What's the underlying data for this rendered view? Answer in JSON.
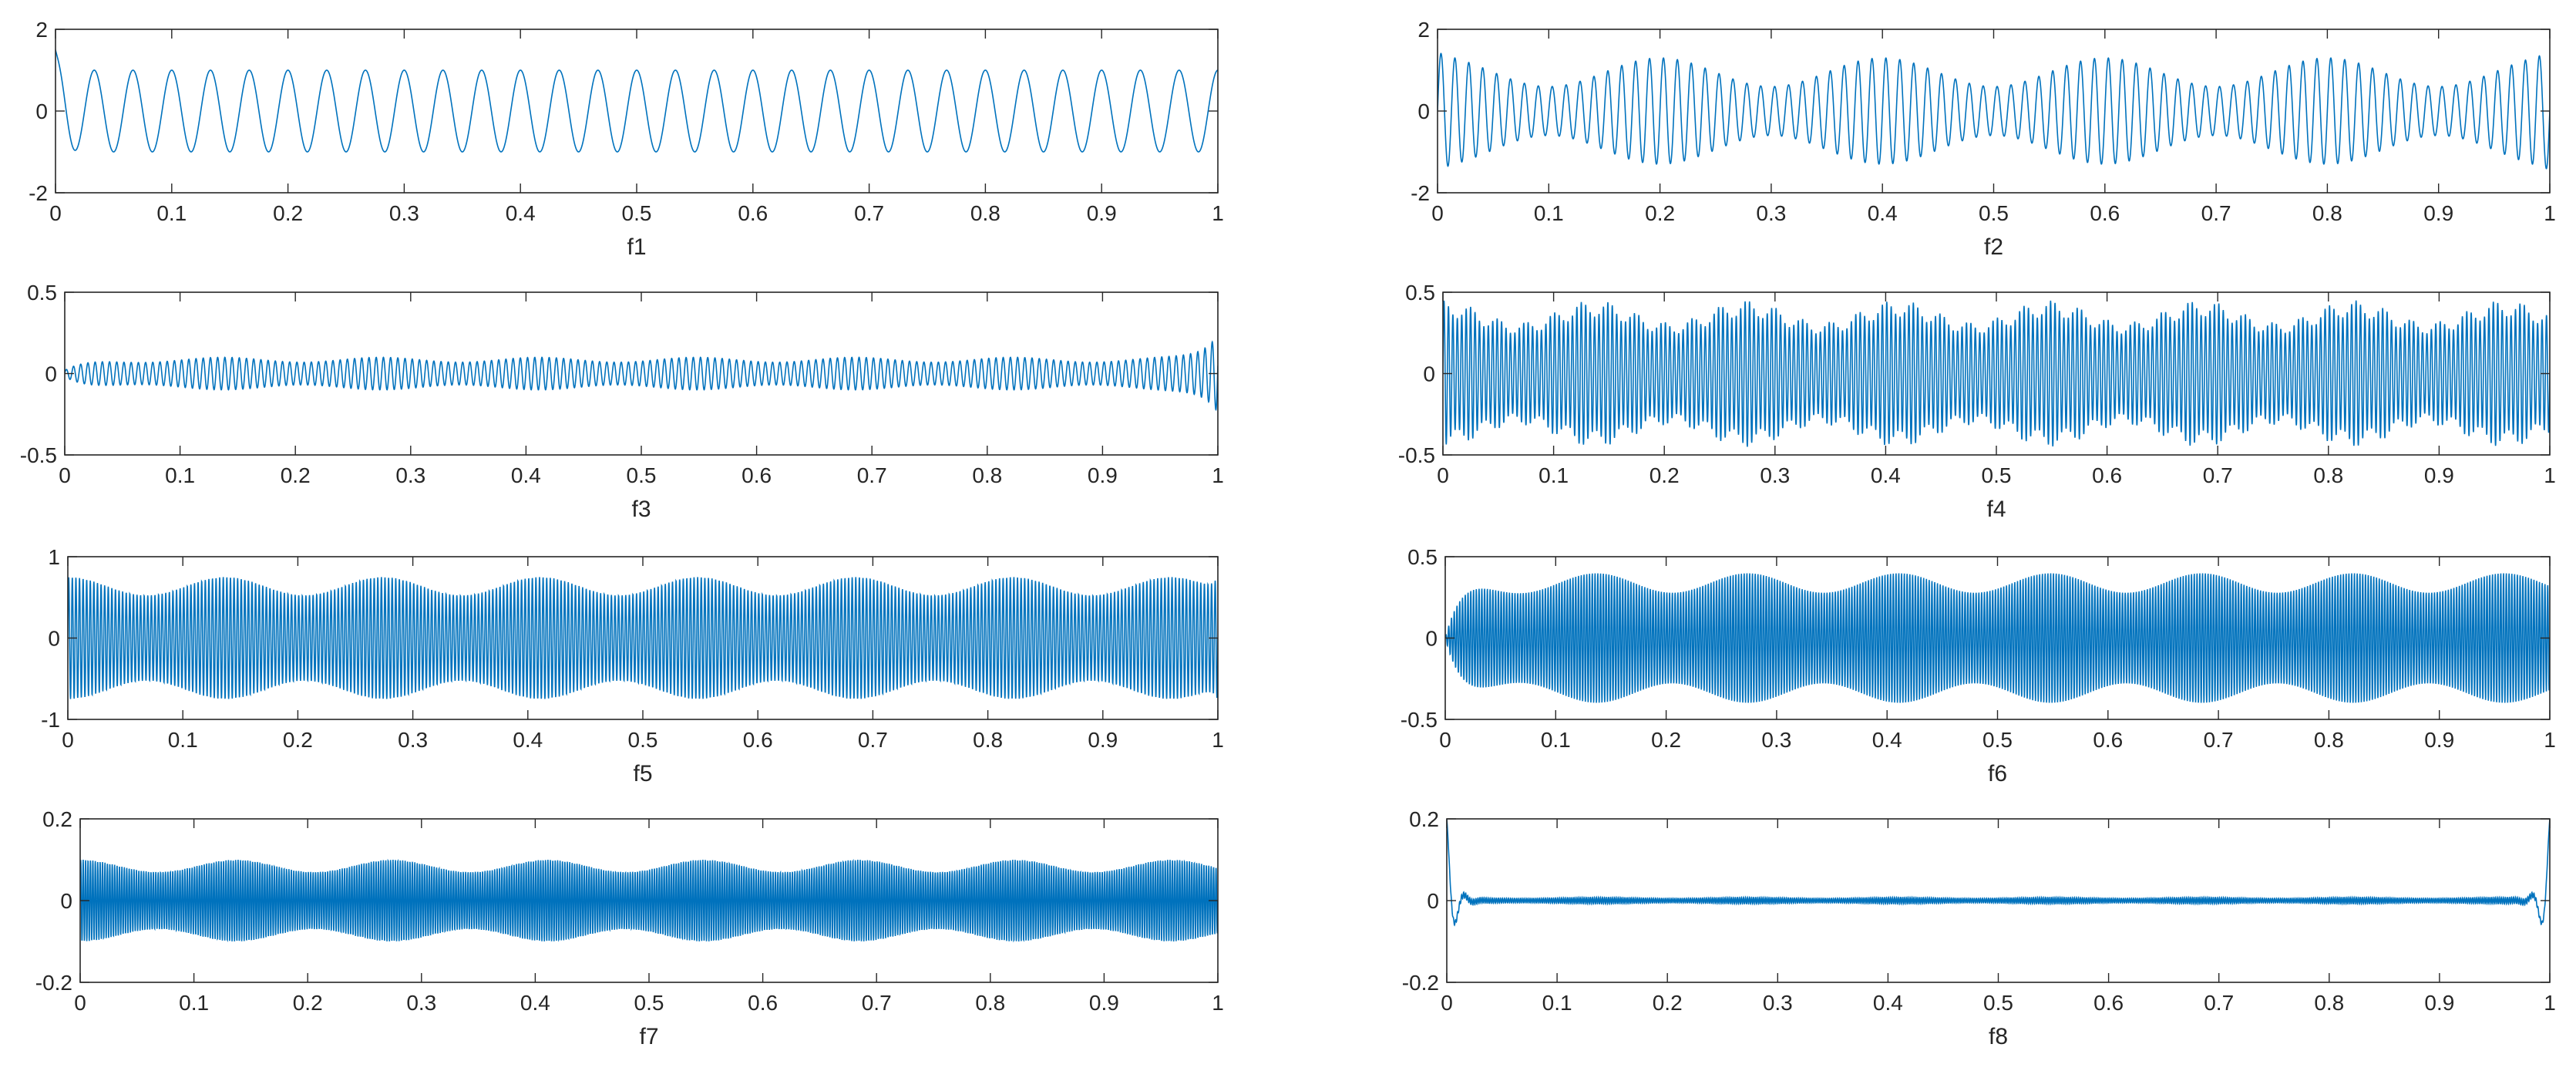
{
  "chart_data": [
    {
      "type": "line",
      "xlabel": "f1",
      "xlim": [
        0,
        1
      ],
      "ylim": [
        -2,
        2
      ],
      "xticks": [
        "0",
        "0.1",
        "0.2",
        "0.3",
        "0.4",
        "0.5",
        "0.6",
        "0.7",
        "0.8",
        "0.9",
        "1"
      ],
      "yticks": [
        "2",
        "0",
        "-2"
      ],
      "series": [
        {
          "color": "#0072BD",
          "signal": {
            "amplitude": 1.0,
            "cycles_per_unit": 30,
            "start_value": 1.5,
            "end_value": 0.6,
            "edge_effect": "start-spike"
          }
        }
      ]
    },
    {
      "type": "line",
      "xlabel": "f2",
      "xlim": [
        0,
        1
      ],
      "ylim": [
        -2,
        2
      ],
      "xticks": [
        "0",
        "0.1",
        "0.2",
        "0.3",
        "0.4",
        "0.5",
        "0.6",
        "0.7",
        "0.8",
        "0.9",
        "1"
      ],
      "yticks": [
        "2",
        "0",
        "-2"
      ],
      "series": [
        {
          "color": "#0072BD",
          "signal": {
            "amplitude_min": 0.6,
            "amplitude_max": 1.3,
            "envelope_cycles_per_unit": 5,
            "cycles_per_unit": 80,
            "edge_peak": 1.45,
            "edge_effect": "both-ends"
          }
        }
      ]
    },
    {
      "type": "line",
      "xlabel": "f3",
      "xlim": [
        0,
        1
      ],
      "ylim": [
        -0.5,
        0.5
      ],
      "xticks": [
        "0",
        "0.1",
        "0.2",
        "0.3",
        "0.4",
        "0.5",
        "0.6",
        "0.7",
        "0.8",
        "0.9",
        "1"
      ],
      "yticks": [
        "0.5",
        "0",
        "-0.5"
      ],
      "series": [
        {
          "color": "#0072BD",
          "signal": {
            "amplitude": 0.1,
            "cycles_per_unit": 160,
            "start_value": 0.02,
            "edge_peak": 0.3,
            "edge_effect": "end-growth"
          }
        }
      ]
    },
    {
      "type": "line",
      "xlabel": "f4",
      "xlim": [
        0,
        1
      ],
      "ylim": [
        -0.5,
        0.5
      ],
      "xticks": [
        "0",
        "0.1",
        "0.2",
        "0.3",
        "0.4",
        "0.5",
        "0.6",
        "0.7",
        "0.8",
        "0.9",
        "1"
      ],
      "yticks": [
        "0.5",
        "0",
        "-0.5"
      ],
      "series": [
        {
          "color": "#0072BD",
          "signal": {
            "amplitude_min": 0.35,
            "amplitude_max": 0.45,
            "envelope_cycles_per_unit": 40,
            "cycles_per_unit": 250,
            "edge_effect": "none"
          }
        }
      ]
    },
    {
      "type": "line",
      "xlabel": "f5",
      "xlim": [
        0,
        1
      ],
      "ylim": [
        -1,
        1
      ],
      "xticks": [
        "0",
        "0.1",
        "0.2",
        "0.3",
        "0.4",
        "0.5",
        "0.6",
        "0.7",
        "0.8",
        "0.9",
        "1"
      ],
      "yticks": [
        "1",
        "0",
        "-1"
      ],
      "series": [
        {
          "color": "#0072BD",
          "signal": {
            "amplitude": 0.75,
            "cycles_per_unit": 320,
            "edge_peak": 0.95,
            "edge_effect": "end-spike"
          }
        }
      ]
    },
    {
      "type": "line",
      "xlabel": "f6",
      "xlim": [
        0,
        1
      ],
      "ylim": [
        -0.5,
        0.5
      ],
      "xticks": [
        "0",
        "0.1",
        "0.2",
        "0.3",
        "0.4",
        "0.5",
        "0.6",
        "0.7",
        "0.8",
        "0.9",
        "1"
      ],
      "yticks": [
        "0.5",
        "0",
        "-0.5"
      ],
      "series": [
        {
          "color": "#0072BD",
          "signal": {
            "amplitude": 0.4,
            "cycles_per_unit": 400,
            "edge_effect": "start-ramp"
          }
        }
      ]
    },
    {
      "type": "line",
      "xlabel": "f7",
      "xlim": [
        0,
        1
      ],
      "ylim": [
        -0.2,
        0.2
      ],
      "xticks": [
        "0",
        "0.1",
        "0.2",
        "0.3",
        "0.4",
        "0.5",
        "0.6",
        "0.7",
        "0.8",
        "0.9",
        "1"
      ],
      "yticks": [
        "0.2",
        "0",
        "-0.2"
      ],
      "series": [
        {
          "color": "#0072BD",
          "signal": {
            "amplitude": 0.1,
            "cycles_per_unit": 470,
            "edge_effect": "none"
          }
        }
      ]
    },
    {
      "type": "line",
      "xlabel": "f8",
      "xlim": [
        0,
        1
      ],
      "ylim": [
        -0.2,
        0.2
      ],
      "xticks": [
        "0",
        "0.1",
        "0.2",
        "0.3",
        "0.4",
        "0.5",
        "0.6",
        "0.7",
        "0.8",
        "0.9",
        "1"
      ],
      "yticks": [
        "0.2",
        "0",
        "-0.2"
      ],
      "series": [
        {
          "color": "#0072BD",
          "signal": {
            "amplitude": 0.008,
            "cycles_per_unit": 540,
            "edge_peak": 0.2,
            "edge_effect": "both-ends-decay"
          }
        }
      ]
    }
  ]
}
